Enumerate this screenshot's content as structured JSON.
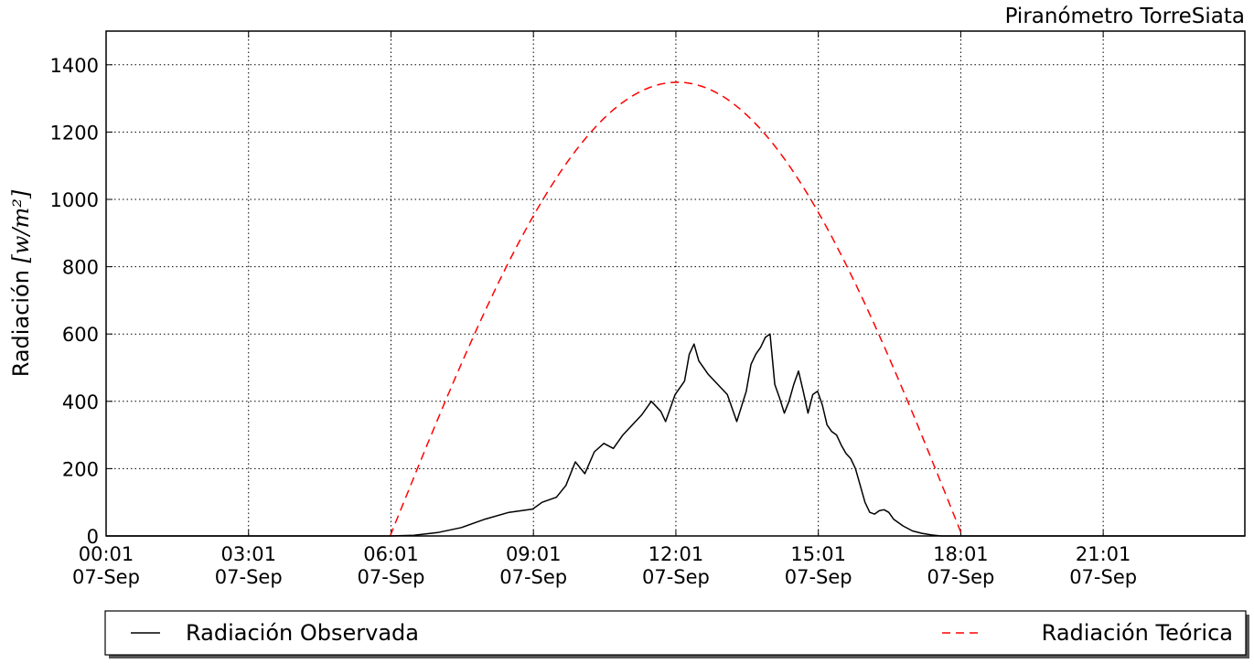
{
  "chart_data": {
    "type": "line",
    "title": "Piranómetro TorreSiata",
    "ylabel_prefix": "Radiación ",
    "ylabel_math": "[w/m²]",
    "ylim": [
      0,
      1500
    ],
    "yticks": [
      0,
      200,
      400,
      600,
      800,
      1000,
      1200,
      1400
    ],
    "xlim": [
      0.017,
      24.0
    ],
    "xticks": [
      {
        "value": 0.017,
        "time": "00:01",
        "date": "07-Sep"
      },
      {
        "value": 3.017,
        "time": "03:01",
        "date": "07-Sep"
      },
      {
        "value": 6.017,
        "time": "06:01",
        "date": "07-Sep"
      },
      {
        "value": 9.017,
        "time": "09:01",
        "date": "07-Sep"
      },
      {
        "value": 12.017,
        "time": "12:01",
        "date": "07-Sep"
      },
      {
        "value": 15.017,
        "time": "15:01",
        "date": "07-Sep"
      },
      {
        "value": 18.017,
        "time": "18:01",
        "date": "07-Sep"
      },
      {
        "value": 21.017,
        "time": "21:01",
        "date": "07-Sep"
      }
    ],
    "grid": true,
    "legend_position": "bottom",
    "series": [
      {
        "name": "Radiación Observada",
        "color": "#000000",
        "style": "solid",
        "x": [
          0.017,
          6.0,
          6.5,
          7.0,
          7.5,
          8.0,
          8.5,
          9.0,
          9.2,
          9.5,
          9.7,
          9.9,
          10.1,
          10.3,
          10.5,
          10.7,
          10.9,
          11.1,
          11.3,
          11.5,
          11.7,
          11.8,
          11.9,
          12.0,
          12.2,
          12.3,
          12.4,
          12.5,
          12.7,
          12.9,
          13.1,
          13.3,
          13.5,
          13.6,
          13.7,
          13.8,
          13.9,
          14.0,
          14.1,
          14.2,
          14.3,
          14.4,
          14.5,
          14.6,
          14.7,
          14.8,
          14.9,
          15.0,
          15.1,
          15.2,
          15.3,
          15.4,
          15.5,
          15.6,
          15.7,
          15.8,
          15.9,
          16.0,
          16.1,
          16.2,
          16.3,
          16.4,
          16.5,
          16.6,
          16.8,
          17.0,
          17.2,
          17.4,
          17.6,
          17.8,
          18.0,
          18.2,
          24.0
        ],
        "values": [
          0,
          0,
          2,
          10,
          25,
          50,
          70,
          80,
          100,
          115,
          150,
          220,
          185,
          250,
          275,
          260,
          300,
          330,
          360,
          400,
          370,
          340,
          380,
          420,
          460,
          540,
          570,
          520,
          480,
          450,
          420,
          340,
          430,
          510,
          540,
          560,
          590,
          600,
          450,
          410,
          365,
          400,
          450,
          490,
          430,
          365,
          420,
          430,
          390,
          330,
          310,
          300,
          270,
          245,
          230,
          200,
          150,
          100,
          70,
          65,
          75,
          78,
          70,
          50,
          30,
          15,
          8,
          3,
          0,
          0,
          0,
          0,
          0
        ]
      },
      {
        "name": "Radiación Teórica",
        "color": "#ff0000",
        "style": "dashed",
        "sunrise": 6.0,
        "sunset": 18.05,
        "peak_time": 12.05,
        "peak": 1348
      }
    ]
  }
}
